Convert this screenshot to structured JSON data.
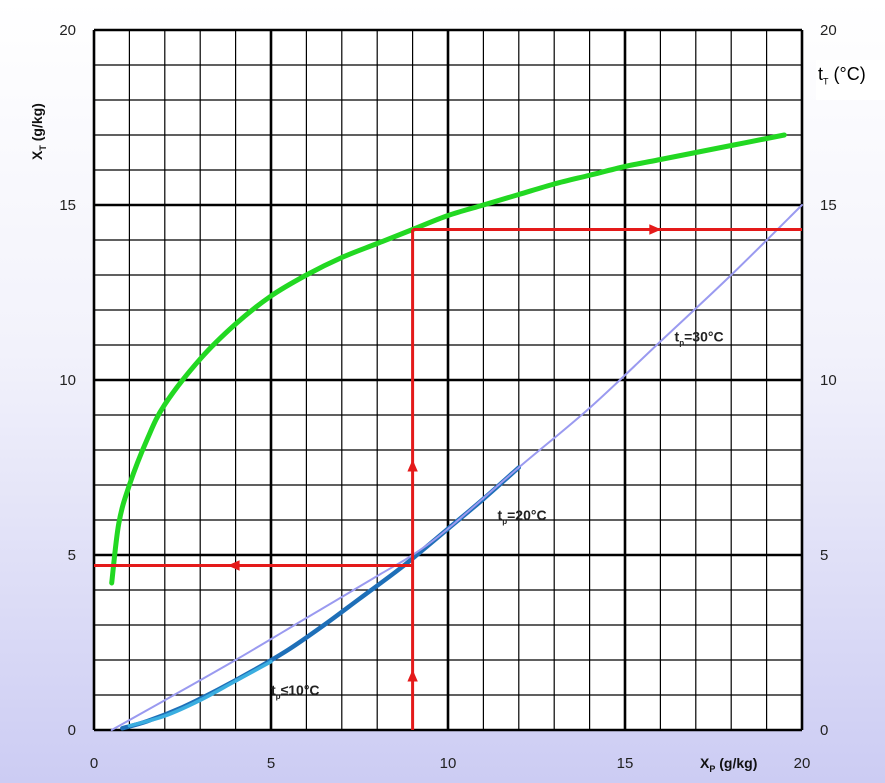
{
  "chart_data": {
    "type": "line",
    "xlabel": {
      "main": "X",
      "sub": "P",
      "unit": " (g/kg)"
    },
    "ylabel": {
      "main": "X",
      "sub": "T",
      "unit": " (g/kg)"
    },
    "y2label": {
      "main": "t",
      "sub": "T",
      "unit": " (°C)"
    },
    "xlim": [
      0,
      20
    ],
    "ylim": [
      0,
      20
    ],
    "y2lim": [
      0,
      20
    ],
    "xticks": [
      "0",
      "5",
      "10",
      "15",
      "20"
    ],
    "yticks": [
      "0",
      "5",
      "10",
      "15",
      "20"
    ],
    "y2ticks": [
      "0",
      "5",
      "10",
      "15",
      "20"
    ],
    "grid": true,
    "colors": {
      "green": "#22d822",
      "blue_dark": "#1e6fb8",
      "blue_light": "#3aaee0",
      "lavender": "#9a9af0",
      "red": "#e41a1a",
      "grid": "#000000"
    },
    "series": [
      {
        "color": "green",
        "x": [
          0.5,
          0.7,
          1.0,
          1.5,
          2.0,
          3.0,
          4.0,
          5.0,
          6.0,
          7.0,
          8.0,
          9.0,
          10.0,
          11.0,
          12.0,
          13.0,
          14.0,
          15.0,
          16.0,
          17.0,
          18.0,
          19.0,
          19.5
        ],
        "y": [
          4.2,
          5.9,
          7.0,
          8.3,
          9.3,
          10.6,
          11.6,
          12.4,
          13.0,
          13.5,
          13.9,
          14.3,
          14.7,
          15.0,
          15.3,
          15.6,
          15.85,
          16.1,
          16.3,
          16.5,
          16.7,
          16.9,
          17.0
        ]
      },
      {
        "color": "blue_dark",
        "x": [
          0.8,
          1.5,
          2.5,
          3.5,
          4.5,
          5.5,
          6.5,
          7.5,
          8.5,
          9.0,
          10.0,
          11.0,
          12.0
        ],
        "y": [
          0.05,
          0.25,
          0.65,
          1.15,
          1.7,
          2.3,
          3.0,
          3.75,
          4.5,
          4.9,
          5.75,
          6.6,
          7.5
        ]
      },
      {
        "color": "blue_light",
        "x": [
          1.0,
          2.0,
          3.0,
          4.0,
          5.0
        ],
        "y": [
          0.12,
          0.4,
          0.85,
          1.4,
          1.95
        ]
      },
      {
        "color": "lavender",
        "x": [
          0.5,
          2.0,
          4.0,
          6.0,
          8.0,
          9.0,
          10.0,
          12.0,
          14.0,
          16.0,
          18.0,
          20.0
        ],
        "y": [
          0.0,
          0.85,
          2.0,
          3.2,
          4.4,
          5.0,
          5.75,
          7.5,
          9.2,
          11.1,
          13.0,
          15.0
        ]
      }
    ],
    "guides": [
      {
        "color": "red",
        "x": [
          9.0,
          9.0
        ],
        "y": [
          0.0,
          14.3
        ]
      },
      {
        "color": "red",
        "x": [
          9.0,
          20.0
        ],
        "y": [
          14.3,
          14.3
        ]
      },
      {
        "color": "red",
        "x": [
          9.0,
          0.0
        ],
        "y": [
          4.7,
          4.7
        ]
      }
    ],
    "arrows": [
      {
        "color": "red",
        "x": 9.0,
        "y": 1.5,
        "direction": "up"
      },
      {
        "color": "red",
        "x": 9.0,
        "y": 7.5,
        "direction": "up"
      },
      {
        "color": "red",
        "x": 15.8,
        "y": 14.3,
        "direction": "right"
      },
      {
        "color": "red",
        "x": 4.0,
        "y": 4.7,
        "direction": "left"
      }
    ],
    "annotations": [
      {
        "main": "t",
        "sub": "p",
        "rest": "=30°C",
        "x": 16.4,
        "y": 11.1
      },
      {
        "main": "t",
        "sub": "p",
        "rest": "=20°C",
        "x": 11.4,
        "y": 6.0
      },
      {
        "main": "t",
        "sub": "p",
        "rest": "≤10°C",
        "x": 5.0,
        "y": 1.0
      }
    ]
  }
}
